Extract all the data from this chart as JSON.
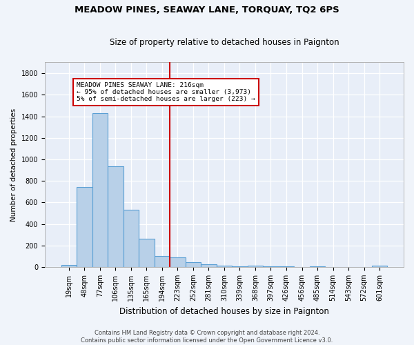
{
  "title": "MEADOW PINES, SEAWAY LANE, TORQUAY, TQ2 6PS",
  "subtitle": "Size of property relative to detached houses in Paignton",
  "xlabel": "Distribution of detached houses by size in Paignton",
  "ylabel": "Number of detached properties",
  "categories": [
    "19sqm",
    "48sqm",
    "77sqm",
    "106sqm",
    "135sqm",
    "165sqm",
    "194sqm",
    "223sqm",
    "252sqm",
    "281sqm",
    "310sqm",
    "339sqm",
    "368sqm",
    "397sqm",
    "426sqm",
    "456sqm",
    "485sqm",
    "514sqm",
    "543sqm",
    "572sqm",
    "601sqm"
  ],
  "values": [
    20,
    740,
    1430,
    935,
    530,
    265,
    105,
    88,
    47,
    28,
    15,
    8,
    15,
    5,
    5,
    2,
    5,
    2,
    2,
    2,
    12
  ],
  "bar_color": "#b8d0e8",
  "bar_edge_color": "#5a9fd4",
  "fig_bg_color": "#f0f4fa",
  "ax_bg_color": "#e8eef8",
  "grid_color": "#ffffff",
  "vline_x_index": 7,
  "vline_color": "#cc0000",
  "annotation_text": "MEADOW PINES SEAWAY LANE: 216sqm\n← 95% of detached houses are smaller (3,973)\n5% of semi-detached houses are larger (223) →",
  "annotation_box_color": "#ffffff",
  "annotation_box_edge": "#cc0000",
  "footer_line1": "Contains HM Land Registry data © Crown copyright and database right 2024.",
  "footer_line2": "Contains public sector information licensed under the Open Government Licence v3.0.",
  "ylim": [
    0,
    1900
  ],
  "yticks": [
    0,
    200,
    400,
    600,
    800,
    1000,
    1200,
    1400,
    1600,
    1800
  ],
  "title_fontsize": 9.5,
  "subtitle_fontsize": 8.5,
  "xlabel_fontsize": 8.5,
  "ylabel_fontsize": 7.5,
  "tick_fontsize": 7,
  "footer_fontsize": 6
}
